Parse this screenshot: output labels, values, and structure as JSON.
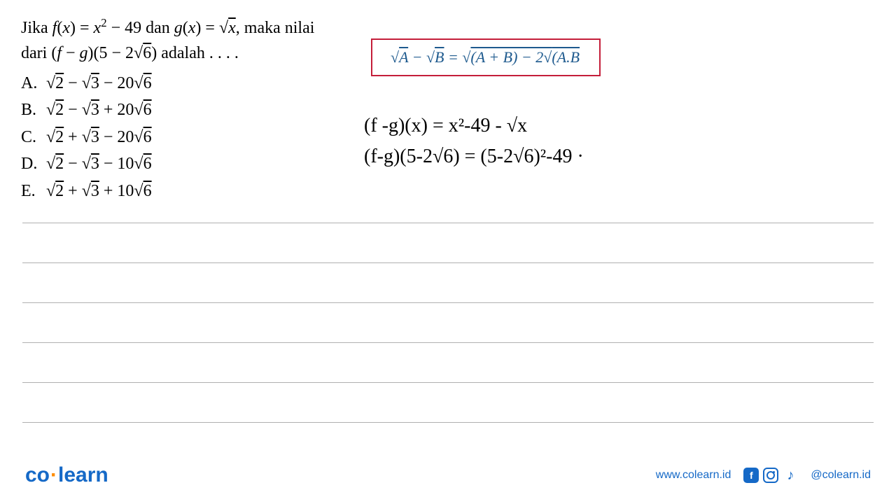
{
  "problem": {
    "line1_html": "Jika <span class='italic'>f</span>(<span class='italic'>x</span>) = <span class='italic'>x</span><sup>2</sup> &minus; 49 dan <span class='italic'>g</span>(<span class='italic'>x</span>) = &radic;<span class='sqrt'><span class='italic'>x</span></span>, maka nilai",
    "line2_html": "dari (<span class='italic'>f</span> &minus; <span class='italic'>g</span>)(5 &minus; 2&radic;<span class='sqrt'>6</span>) adalah . . . ."
  },
  "options": [
    {
      "label": "A.",
      "value_html": "&radic;<span class='sqrt'>2</span> &minus; &radic;<span class='sqrt'>3</span> &minus; 20&radic;<span class='sqrt'>6</span>"
    },
    {
      "label": "B.",
      "value_html": "&radic;<span class='sqrt'>2</span> &minus; &radic;<span class='sqrt'>3</span> + 20&radic;<span class='sqrt'>6</span>"
    },
    {
      "label": "C.",
      "value_html": "&radic;<span class='sqrt'>2</span> + &radic;<span class='sqrt'>3</span> &minus; 20&radic;<span class='sqrt'>6</span>"
    },
    {
      "label": "D.",
      "value_html": "&radic;<span class='sqrt'>2</span> &minus; &radic;<span class='sqrt'>3</span> &minus; 10&radic;<span class='sqrt'>6</span>"
    },
    {
      "label": "E.",
      "value_html": "&radic;<span class='sqrt'>2</span> + &radic;<span class='sqrt'>3</span> + 10&radic;<span class='sqrt'>6</span>"
    }
  ],
  "formula_box": {
    "content_html": "&radic;<span class='sqrt'>A</span> &minus; &radic;<span class='sqrt'>B</span> = &radic;<span class='sqrt' style='padding-right:2px'>(A + B) &minus; 2&radic;<span class='sqrt'>(A.B</span></span>",
    "border_color": "#c41e3a",
    "text_color": "#1e5a8e"
  },
  "handwritten": {
    "line1": "(f -g)(x) = x²-49 - √x",
    "line2": "(f-g)(5-2√6) = (5-2√6)²-49  ·"
  },
  "footer": {
    "logo_co": "co",
    "logo_learn": "learn",
    "website": "www.colearn.id",
    "handle": "@colearn.id",
    "fb_letter": "f"
  },
  "colors": {
    "brand_blue": "#1569c7",
    "brand_orange": "#ff8c00",
    "formula_red": "#c41e3a",
    "formula_text": "#1e5a8e",
    "rule_line": "#b0b0b0",
    "text": "#000000"
  }
}
